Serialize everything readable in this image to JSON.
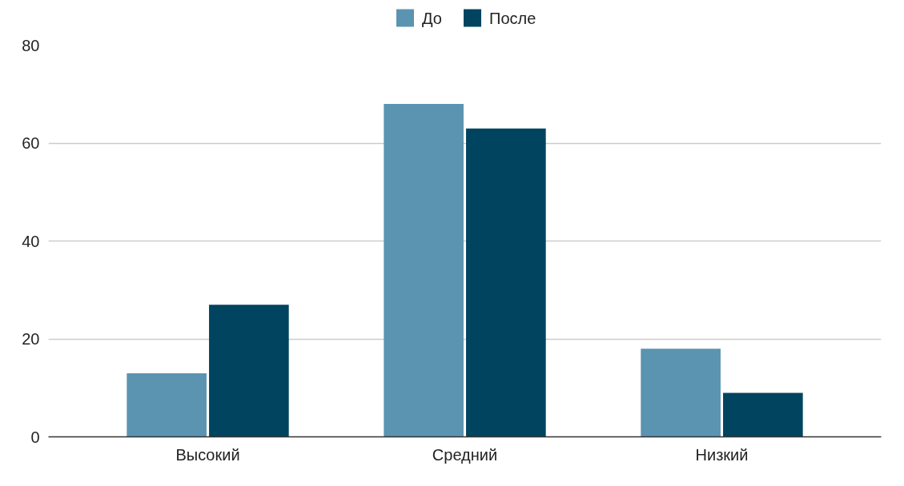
{
  "chart_data": {
    "type": "bar",
    "categories": [
      "Высокий",
      "Средний",
      "Низкий"
    ],
    "series": [
      {
        "name": "До",
        "color": "#5b94b1",
        "values": [
          13,
          68,
          18
        ]
      },
      {
        "name": "После",
        "color": "#00445f",
        "values": [
          27,
          63,
          9
        ]
      }
    ],
    "ylim": [
      0,
      80
    ],
    "yticks": [
      0,
      20,
      40,
      60,
      80
    ],
    "grid": "y",
    "legend": "top"
  }
}
